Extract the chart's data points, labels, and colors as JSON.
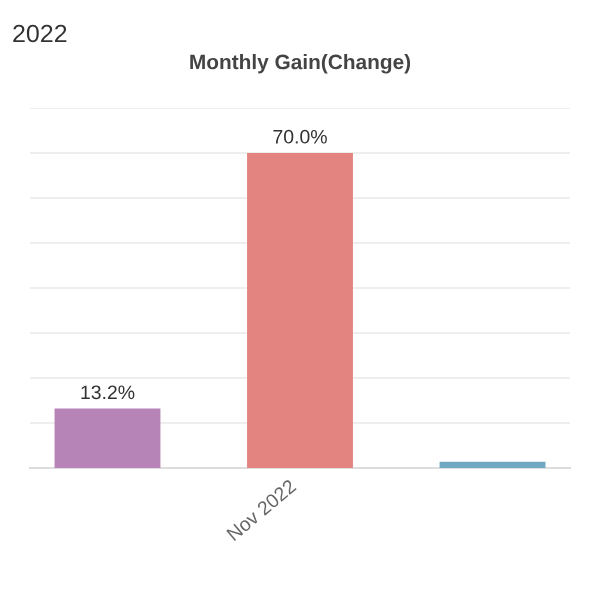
{
  "chart_data": {
    "type": "bar",
    "title": "Monthly Gain(Change)",
    "annotations": [
      "2022"
    ],
    "categories": [
      null,
      "Nov 2022",
      null
    ],
    "values": [
      13.2,
      70.0,
      1.4
    ],
    "colors": [
      "#b784b7",
      "#e48481",
      "#6fa8c0"
    ],
    "value_labels": [
      "13.2%",
      "70.0%",
      null
    ],
    "ylim": [
      0,
      80
    ],
    "yticks": [
      {
        "value": 0,
        "label": null
      },
      {
        "value": 10,
        "label": null
      },
      {
        "value": 20,
        "label": null
      },
      {
        "value": 30,
        "label": null
      },
      {
        "value": 40,
        "label": null
      },
      {
        "value": 50,
        "label": null
      },
      {
        "value": 60,
        "label": null
      },
      {
        "value": 70,
        "label": null
      },
      {
        "value": 80,
        "label": null
      }
    ],
    "tick_labels": "x",
    "grid": "y",
    "legend": false
  }
}
